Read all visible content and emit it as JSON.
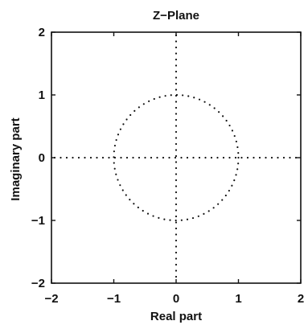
{
  "chart_data": {
    "type": "scatter",
    "title": "Z−Plane",
    "xlabel": "Real part",
    "ylabel": "Imaginary part",
    "xlim": [
      -2,
      2
    ],
    "ylim": [
      -2,
      2
    ],
    "xticks": [
      -2,
      -1,
      0,
      1,
      2
    ],
    "yticks": [
      -2,
      -1,
      0,
      1,
      2
    ],
    "xtick_labels": [
      "−2",
      "−1",
      "0",
      "1",
      "2"
    ],
    "ytick_labels": [
      "−2",
      "−1",
      "0",
      "1",
      "2"
    ],
    "grid": false,
    "axes_lines": {
      "horizontal_at": 0,
      "vertical_at": 0,
      "style": "dotted"
    },
    "unit_circle": {
      "center": [
        0,
        0
      ],
      "radius": 1,
      "style": "dotted"
    },
    "colors": {
      "ink": "#111111",
      "background": "#ffffff"
    }
  }
}
